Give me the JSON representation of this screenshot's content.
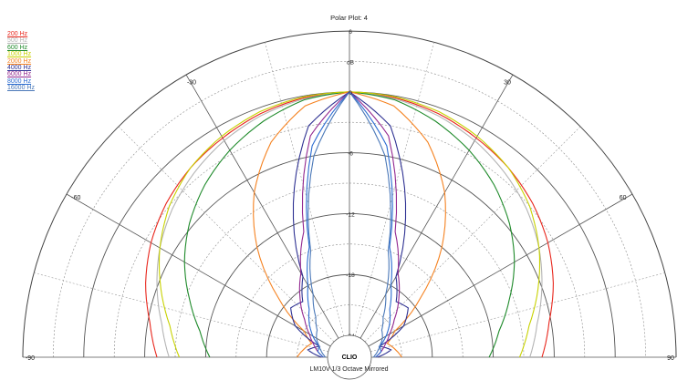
{
  "chart_data": {
    "type": "polar",
    "title": "Polar Plot: 4",
    "footer": "LM10V   1/3 Octave   Mirrored",
    "logo": "CLIO",
    "radial_unit": "dB",
    "radial_ticks": [
      6,
      0,
      -6,
      -12,
      -18,
      -24
    ],
    "angle_ticks": [
      -90,
      -60,
      -30,
      0,
      30,
      60,
      90
    ],
    "angle_labels": [
      "-90",
      "-60",
      "-30",
      "30",
      "60",
      "90"
    ],
    "rlim": [
      -24,
      6
    ],
    "grid": true,
    "legend_position": "top-left",
    "mirrored": true,
    "angles_deg": [
      0,
      10,
      20,
      30,
      40,
      50,
      60,
      70,
      80,
      90
    ],
    "series": [
      {
        "name": "200 Hz",
        "color": "#e8261c",
        "values": [
          0,
          -0.2,
          -0.6,
          -1.2,
          -1.8,
          -2.6,
          -3.6,
          -4.8,
          -6.2,
          -7.2
        ]
      },
      {
        "name": "500 Hz",
        "color": "#b4b4b4",
        "values": [
          0,
          -0.3,
          -0.8,
          -1.5,
          -2.4,
          -3.4,
          -4.6,
          -6.0,
          -7.4,
          -8.4
        ]
      },
      {
        "name": "600 Hz",
        "color": "#1e8a2a",
        "values": [
          0,
          -0.4,
          -1.4,
          -2.6,
          -4.0,
          -5.6,
          -7.4,
          -9.4,
          -11.2,
          -12.4
        ]
      },
      {
        "name": "1000 Hz",
        "color": "#c8d200",
        "values": [
          0,
          -0.1,
          -0.4,
          -1.0,
          -1.8,
          -3.0,
          -4.6,
          -6.4,
          -8.2,
          -9.4
        ]
      },
      {
        "name": "2000 Hz",
        "color": "#f58220",
        "values": [
          0,
          -1.0,
          -3.6,
          -7.4,
          -12.0,
          -17.0,
          -21.0,
          -22.2,
          -21.6,
          -21.0
        ]
      },
      {
        "name": "4000 Hz",
        "color": "#2e3192",
        "values": [
          0,
          -3.0,
          -10.0,
          -17.0,
          -19.0,
          -18.6,
          -20.0,
          -23.0,
          -22.0,
          -23.4
        ]
      },
      {
        "name": "6000 Hz",
        "color": "#92278f",
        "values": [
          0,
          -4.0,
          -13.0,
          -16.6,
          -18.6,
          -20.4,
          -21.6,
          -22.4,
          -23.0,
          -23.6
        ]
      },
      {
        "name": "8000 Hz",
        "color": "#2a6bd1",
        "values": [
          0,
          -5.0,
          -14.6,
          -18.0,
          -20.0,
          -21.0,
          -22.0,
          -23.0,
          -23.0,
          -23.6
        ]
      },
      {
        "name": "16000 Hz",
        "color": "#4a78b8",
        "values": [
          0,
          -6.0,
          -15.0,
          -19.0,
          -21.0,
          -22.0,
          -22.4,
          -23.0,
          -23.4,
          -23.8
        ]
      }
    ]
  }
}
